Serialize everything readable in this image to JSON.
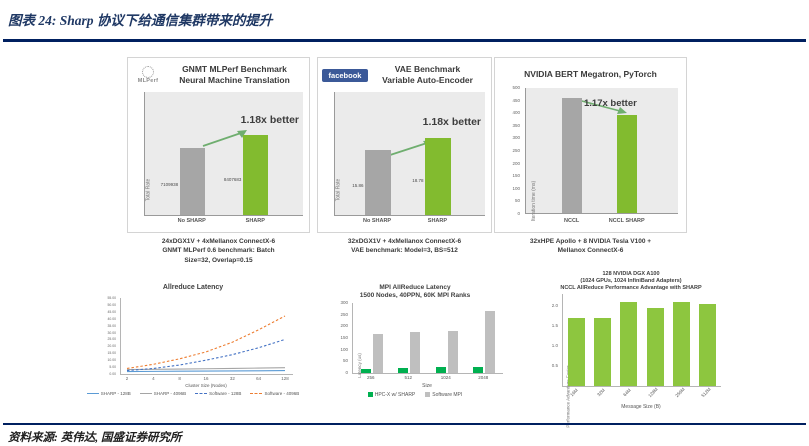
{
  "page": {
    "figure_title": "图表 24: Sharp 协议下给通信集群带来的提升",
    "source": "资料来源: 英伟达, 国盛证券研究所",
    "rule_color": "#002060",
    "title_color": "#1f3864"
  },
  "logos": {
    "mlperf": "MLPerf",
    "facebook": "facebook"
  },
  "captions": {
    "gnmt": [
      "24xDGX1V + 4xMellanox ConnectX-6",
      "GNMT MLPerf 0.6 benchmark: Batch",
      "Size=32, Overlap=0.15"
    ],
    "vae": [
      "32xDGX1V + 4xMellanox ConnectX-6",
      "VAE benchmark: Model=3, BS=512"
    ],
    "bert": [
      "32xHPE Apollo + 8 NVIDIA Tesla V100 +",
      "Mellanox ConnectX-6"
    ]
  },
  "chart_data": [
    {
      "type": "bar",
      "title_lines": [
        "GNMT MLPerf Benchmark",
        "Neural Machine Translation"
      ],
      "ylabel": "Total Rate",
      "categories": [
        "No SHARP",
        "SHARP"
      ],
      "values": [
        7109938,
        8407683
      ],
      "value_labels": [
        "7109938",
        "8407683"
      ],
      "colors": [
        "#a6a6a6",
        "#82bb2f"
      ],
      "annotation": "1.18x better",
      "ylim": [
        0,
        13000000
      ]
    },
    {
      "type": "bar",
      "title_lines": [
        "VAE Benchmark",
        "Variable Auto-Encoder"
      ],
      "ylabel": "Total Rate",
      "categories": [
        "No SHARP",
        "SHARP"
      ],
      "values": [
        15.86,
        18.78
      ],
      "value_labels": [
        "15.86",
        "18.78"
      ],
      "colors": [
        "#a6a6a6",
        "#82bb2f"
      ],
      "annotation": "1.18x better",
      "ylim": [
        0,
        30
      ]
    },
    {
      "type": "bar",
      "title_lines": [
        "NVIDIA BERT Megatron, PyTorch"
      ],
      "ylabel": "Iteration time (ms)",
      "categories": [
        "NCCL",
        "NCCL SHARP"
      ],
      "values": [
        460,
        393
      ],
      "colors": [
        "#a6a6a6",
        "#82bb2f"
      ],
      "annotation": "1.17x better",
      "ylim": [
        0,
        500
      ],
      "yticks": [
        "0",
        "50",
        "100",
        "150",
        "200",
        "250",
        "300",
        "350",
        "400",
        "450",
        "500"
      ]
    },
    {
      "type": "line",
      "title": "Allreduce Latency",
      "xlabel": "Cluster Size (Nodes)",
      "ylabel": "Latency (usec)",
      "xtick_labels": [
        "2",
        "4",
        "8",
        "16",
        "32",
        "64",
        "128"
      ],
      "yticks": [
        "0.00",
        "5.00",
        "10.00",
        "15.00",
        "20.00",
        "25.00",
        "30.00",
        "35.00",
        "40.00",
        "45.00",
        "50.00",
        "55.00"
      ],
      "ylim": [
        0,
        55
      ],
      "series": [
        {
          "name": "SHARP - 128B",
          "color": "#5b9bd5",
          "dash": "solid",
          "values": [
            1.8,
            1.9,
            2.0,
            2.1,
            2.2,
            2.3,
            2.5
          ]
        },
        {
          "name": "SHARP - 4096B",
          "color": "#a5a5a5",
          "dash": "solid",
          "values": [
            3.2,
            3.4,
            3.6,
            3.8,
            4.0,
            4.3,
            4.6
          ]
        },
        {
          "name": "Software - 128B",
          "color": "#4472c4",
          "dash": "dashed",
          "values": [
            2.5,
            4.0,
            6.5,
            10.0,
            14.0,
            19.0,
            25.0
          ]
        },
        {
          "name": "Software - 4096B",
          "color": "#ed7d31",
          "dash": "dashed",
          "values": [
            4.0,
            7.0,
            11.0,
            16.0,
            23.0,
            32.0,
            42.0
          ]
        }
      ],
      "legend_position": "bottom"
    },
    {
      "type": "bar",
      "title_lines": [
        "MPI AllReduce Latency",
        "1500 Nodes, 40PPN, 60K MPI Ranks"
      ],
      "xlabel": "Size",
      "ylabel": "Latency (us)",
      "categories": [
        "256",
        "512",
        "1024",
        "2048"
      ],
      "series": [
        {
          "name": "HPC-X w/ SHARP",
          "color": "#00b050",
          "values": [
            18,
            21,
            24,
            27
          ]
        },
        {
          "name": "Software MPI",
          "color": "#bfbfbf",
          "values": [
            168,
            175,
            180,
            265
          ]
        }
      ],
      "yticks": [
        "0",
        "50",
        "100",
        "150",
        "200",
        "250",
        "300"
      ],
      "ylim": [
        0,
        300
      ],
      "legend_position": "bottom"
    },
    {
      "type": "bar",
      "title_lines": [
        "128 NVIDIA DGX A100",
        "(1024 GPUs, 1024 InfiniBand Adapters)",
        "NCCL AllReduce Performance Advantage with SHARP"
      ],
      "xlabel": "Message Size (B)",
      "ylabel": "Performance Advantage Factor",
      "categories": [
        "16M",
        "32M",
        "64M",
        "128M",
        "256M",
        "512M"
      ],
      "values": [
        1.7,
        1.7,
        2.1,
        1.95,
        2.1,
        2.05
      ],
      "color": "#8dc63f",
      "yticks": [
        "0.5",
        "1.0",
        "1.5",
        "2.0"
      ],
      "ylim": [
        0,
        2.3
      ]
    }
  ]
}
